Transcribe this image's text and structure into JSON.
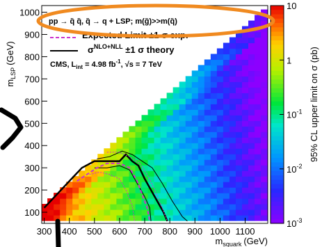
{
  "chart_data": {
    "type": "heatmap",
    "title": "",
    "xlabel": "m",
    "xlabel_sub": "squark",
    "xlabel_unit": "(GeV)",
    "ylabel": "m",
    "ylabel_sub": "LSP",
    "ylabel_unit": "(GeV)",
    "zlabel": "95% CL upper limit on σ (pb)",
    "xlim": [
      290,
      1190
    ],
    "ylim": [
      50,
      1030
    ],
    "x_ticks": [
      300,
      400,
      500,
      600,
      700,
      800,
      900,
      1000,
      1100
    ],
    "y_ticks": [
      100,
      200,
      300,
      400,
      500,
      600,
      700,
      800,
      900,
      1000
    ],
    "z_log_scale": true,
    "zlim": [
      0.001,
      10
    ],
    "z_ticks": [
      {
        "value": 0.001,
        "base": "10",
        "exp": "-3"
      },
      {
        "value": 0.01,
        "base": "10",
        "exp": "-2"
      },
      {
        "value": 0.1,
        "base": "10",
        "exp": "-1"
      },
      {
        "value": 1,
        "base": "1",
        "exp": ""
      },
      {
        "value": 10,
        "base": "10",
        "exp": ""
      }
    ],
    "grid": false,
    "legend": {
      "process": "pp → q̃ q̃, q̃ → q + LSP; m(g̃)>>m(q̃)",
      "expected": "Expected Limit ±1 σ exp.",
      "theory_base": "σ",
      "theory_sup": "NLO+NLL",
      "theory_tail": " ±1 σ theory",
      "lumi_base": "CMS, L",
      "lumi_sub": "int",
      "lumi_mid": " = 4.98 fb",
      "lumi_sup": "-1",
      "lumi_tail": ", √s = 7 TeV"
    },
    "series": [
      {
        "kind": "observed",
        "color": "#000000",
        "points": [
          [
            300,
            120
          ],
          [
            350,
            180
          ],
          [
            400,
            240
          ],
          [
            450,
            300
          ],
          [
            500,
            330
          ],
          [
            550,
            330
          ],
          [
            600,
            330
          ],
          [
            625,
            360
          ],
          [
            650,
            330
          ],
          [
            675,
            310
          ],
          [
            700,
            250
          ],
          [
            725,
            200
          ],
          [
            750,
            150
          ],
          [
            775,
            100
          ],
          [
            790,
            60
          ]
        ]
      },
      {
        "kind": "observed-theory-up",
        "color": "#000000",
        "points": [
          [
            510,
            340
          ],
          [
            560,
            350
          ],
          [
            610,
            375
          ],
          [
            650,
            360
          ],
          [
            690,
            330
          ],
          [
            730,
            300
          ],
          [
            770,
            230
          ],
          [
            810,
            150
          ],
          [
            850,
            80
          ],
          [
            870,
            60
          ]
        ]
      },
      {
        "kind": "observed-theory-down",
        "color": "#000000",
        "points": [
          [
            500,
            300
          ],
          [
            550,
            300
          ],
          [
            600,
            310
          ],
          [
            640,
            290
          ],
          [
            670,
            230
          ],
          [
            700,
            170
          ],
          [
            720,
            120
          ],
          [
            725,
            60
          ]
        ]
      },
      {
        "kind": "expected",
        "color": "#cc33cc",
        "points": [
          [
            430,
            240
          ],
          [
            470,
            270
          ],
          [
            510,
            300
          ],
          [
            550,
            320
          ],
          [
            600,
            320
          ],
          [
            640,
            300
          ],
          [
            670,
            240
          ],
          [
            690,
            180
          ],
          [
            710,
            120
          ],
          [
            720,
            60
          ]
        ]
      },
      {
        "kind": "expected-exp-up",
        "color": "#cc33cc",
        "points": [
          [
            550,
            370
          ],
          [
            600,
            370
          ],
          [
            640,
            350
          ],
          [
            680,
            320
          ],
          [
            710,
            270
          ],
          [
            740,
            200
          ],
          [
            770,
            120
          ],
          [
            790,
            60
          ]
        ]
      },
      {
        "kind": "expected-exp-down",
        "color": "#cc33cc",
        "points": [
          [
            480,
            270
          ],
          [
            520,
            280
          ],
          [
            560,
            270
          ],
          [
            600,
            250
          ],
          [
            630,
            190
          ],
          [
            650,
            130
          ],
          [
            660,
            60
          ]
        ]
      }
    ]
  },
  "annotations": {
    "ellipse_color": "#f08a20",
    "arrow_color": "#000000"
  }
}
